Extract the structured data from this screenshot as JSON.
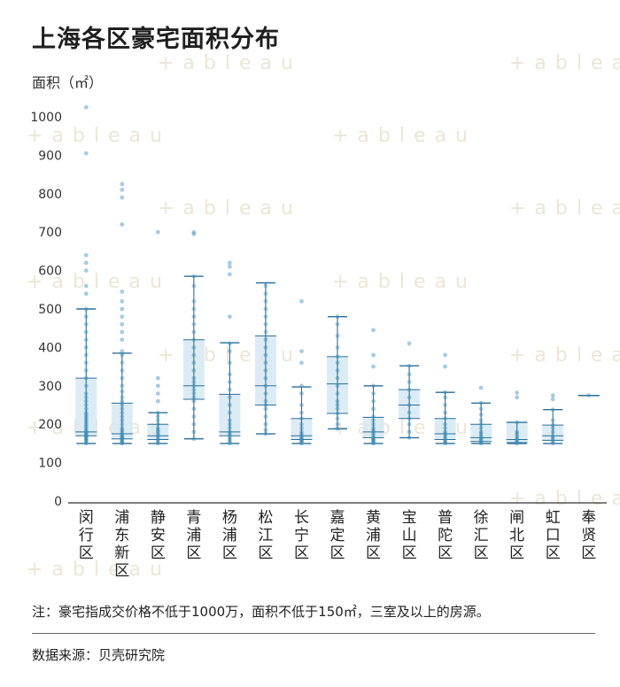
{
  "title": "上海各区豪宅面积分布",
  "footer": {
    "note": "注：豪宅指成交价格不低于1000万，面积不低于150㎡，三室及以上的房源。",
    "source": "数据来源：贝壳研究院"
  },
  "watermark": "+ableau",
  "colors": {
    "point": "#3b8db8",
    "whisker": "#2a6f97",
    "box": "#d6e9f3",
    "axis": "#333333",
    "watermark": "#ece6d6"
  },
  "chart_data": {
    "type": "box",
    "ylabel": "面积（㎡）",
    "ylim": [
      0,
      1000
    ],
    "yticks": [
      0,
      100,
      200,
      300,
      400,
      500,
      600,
      700,
      800,
      900,
      1000
    ],
    "grid": false,
    "categories": [
      "闵行区",
      "浦东新区",
      "静安区",
      "青浦区",
      "杨浦区",
      "松江区",
      "长宁区",
      "嘉定区",
      "黄浦区",
      "宝山区",
      "普陀区",
      "徐汇区",
      "闸北区",
      "虹口区",
      "奉贤区"
    ],
    "boxes": [
      {
        "name": "闵行区",
        "min": 150,
        "q1": 170,
        "median": 180,
        "q3": 320,
        "max": 500
      },
      {
        "name": "浦东新区",
        "min": 150,
        "q1": 162,
        "median": 175,
        "q3": 255,
        "max": 385
      },
      {
        "name": "静安区",
        "min": 150,
        "q1": 160,
        "median": 170,
        "q3": 200,
        "max": 230
      },
      {
        "name": "青浦区",
        "min": 162,
        "q1": 265,
        "median": 300,
        "q3": 420,
        "max": 585
      },
      {
        "name": "杨浦区",
        "min": 150,
        "q1": 170,
        "median": 180,
        "q3": 278,
        "max": 412
      },
      {
        "name": "松江区",
        "min": 175,
        "q1": 250,
        "median": 300,
        "q3": 430,
        "max": 568
      },
      {
        "name": "长宁区",
        "min": 150,
        "q1": 160,
        "median": 170,
        "q3": 215,
        "max": 297
      },
      {
        "name": "嘉定区",
        "min": 188,
        "q1": 228,
        "median": 305,
        "q3": 376,
        "max": 480
      },
      {
        "name": "黄浦区",
        "min": 150,
        "q1": 165,
        "median": 180,
        "q3": 218,
        "max": 300
      },
      {
        "name": "宝山区",
        "min": 165,
        "q1": 215,
        "median": 250,
        "q3": 290,
        "max": 352
      },
      {
        "name": "普陀区",
        "min": 150,
        "q1": 160,
        "median": 175,
        "q3": 215,
        "max": 283
      },
      {
        "name": "徐汇区",
        "min": 150,
        "q1": 155,
        "median": 165,
        "q3": 200,
        "max": 255
      },
      {
        "name": "闸北区",
        "min": 150,
        "q1": 152,
        "median": 160,
        "q3": 205,
        "max": 205
      },
      {
        "name": "虹口区",
        "min": 150,
        "q1": 158,
        "median": 170,
        "q3": 198,
        "max": 238
      },
      {
        "name": "奉贤区",
        "min": 275,
        "q1": 275,
        "median": 275,
        "q3": 275,
        "max": 275
      }
    ],
    "points": [
      [
        150,
        155,
        158,
        160,
        163,
        165,
        168,
        170,
        172,
        175,
        178,
        180,
        185,
        190,
        195,
        200,
        205,
        210,
        215,
        220,
        225,
        230,
        240,
        250,
        260,
        270,
        280,
        300,
        320,
        340,
        360,
        380,
        400,
        420,
        440,
        460,
        480,
        500,
        540,
        560,
        600,
        620,
        640,
        905,
        1025
      ],
      [
        150,
        152,
        155,
        158,
        160,
        163,
        165,
        168,
        170,
        175,
        180,
        185,
        190,
        200,
        210,
        220,
        230,
        240,
        250,
        260,
        270,
        285,
        300,
        320,
        340,
        360,
        380,
        390,
        420,
        440,
        460,
        480,
        500,
        520,
        545,
        720,
        790,
        810,
        825
      ],
      [
        150,
        155,
        160,
        165,
        170,
        175,
        180,
        185,
        190,
        200,
        210,
        220,
        230,
        260,
        280,
        300,
        320,
        700
      ],
      [
        162,
        180,
        200,
        220,
        240,
        260,
        270,
        280,
        290,
        300,
        310,
        320,
        340,
        360,
        380,
        400,
        420,
        440,
        460,
        480,
        500,
        520,
        560,
        585,
        695,
        700
      ],
      [
        150,
        155,
        160,
        165,
        170,
        175,
        180,
        190,
        200,
        210,
        230,
        250,
        270,
        290,
        310,
        330,
        360,
        390,
        410,
        480,
        590,
        610,
        620
      ],
      [
        175,
        185,
        200,
        220,
        240,
        250,
        260,
        280,
        300,
        320,
        340,
        360,
        380,
        400,
        420,
        440,
        460,
        480,
        500,
        520,
        540,
        560
      ],
      [
        150,
        152,
        155,
        158,
        160,
        163,
        165,
        170,
        175,
        180,
        190,
        200,
        215,
        230,
        250,
        280,
        300,
        360,
        390,
        520
      ],
      [
        188,
        200,
        215,
        228,
        240,
        250,
        260,
        280,
        300,
        320,
        340,
        360,
        376,
        400,
        430,
        460,
        480
      ],
      [
        150,
        152,
        155,
        158,
        160,
        163,
        165,
        170,
        175,
        180,
        185,
        190,
        200,
        210,
        220,
        240,
        260,
        280,
        300,
        350,
        380,
        445
      ],
      [
        165,
        180,
        200,
        215,
        230,
        250,
        270,
        290,
        310,
        330,
        352,
        410
      ],
      [
        150,
        153,
        156,
        160,
        165,
        170,
        175,
        180,
        190,
        200,
        215,
        230,
        250,
        270,
        283,
        350,
        380
      ],
      [
        150,
        152,
        155,
        158,
        162,
        165,
        170,
        175,
        180,
        190,
        200,
        210,
        225,
        240,
        255,
        295
      ],
      [
        150,
        152,
        155,
        160,
        165,
        170,
        175,
        180,
        205,
        270,
        282
      ],
      [
        150,
        155,
        160,
        165,
        170,
        180,
        190,
        198,
        210,
        238,
        265,
        275
      ],
      [
        275
      ]
    ]
  }
}
